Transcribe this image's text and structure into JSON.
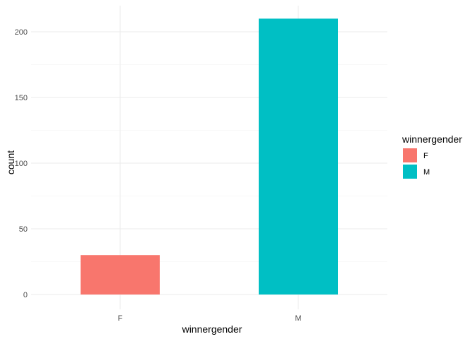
{
  "chart_data": {
    "type": "bar",
    "categories": [
      "F",
      "M"
    ],
    "values": [
      30,
      210
    ],
    "colors": [
      "#F8766D",
      "#00BFC4"
    ],
    "xlabel": "winnergender",
    "ylabel": "count",
    "ylim": [
      0,
      210
    ],
    "yticks": [
      "0",
      "50",
      "100",
      "150",
      "200"
    ],
    "grid": true,
    "legend": {
      "title": "winnergender",
      "position": "right",
      "entries": [
        "F",
        "M"
      ]
    }
  }
}
